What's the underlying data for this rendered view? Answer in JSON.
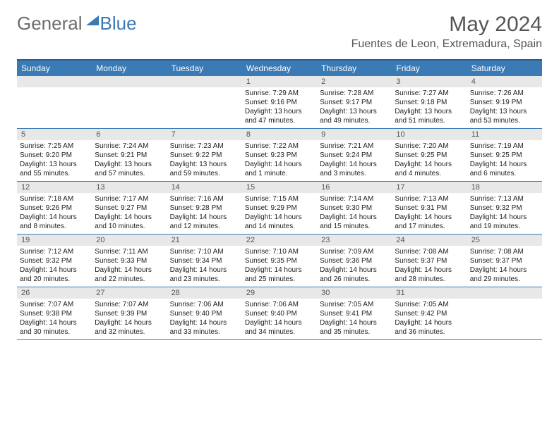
{
  "logo": {
    "part1": "General",
    "part2": "Blue"
  },
  "title": "May 2024",
  "location": "Fuentes de Leon, Extremadura, Spain",
  "colors": {
    "header_bg": "#3a7ab5",
    "header_text": "#ffffff",
    "daynum_bg": "#e8e8e8",
    "text": "#222222",
    "border": "#3a7ab5"
  },
  "dayHeaders": [
    "Sunday",
    "Monday",
    "Tuesday",
    "Wednesday",
    "Thursday",
    "Friday",
    "Saturday"
  ],
  "weeks": [
    [
      null,
      null,
      null,
      {
        "n": "1",
        "sr": "7:29 AM",
        "ss": "9:16 PM",
        "dl": "13 hours and 47 minutes."
      },
      {
        "n": "2",
        "sr": "7:28 AM",
        "ss": "9:17 PM",
        "dl": "13 hours and 49 minutes."
      },
      {
        "n": "3",
        "sr": "7:27 AM",
        "ss": "9:18 PM",
        "dl": "13 hours and 51 minutes."
      },
      {
        "n": "4",
        "sr": "7:26 AM",
        "ss": "9:19 PM",
        "dl": "13 hours and 53 minutes."
      }
    ],
    [
      {
        "n": "5",
        "sr": "7:25 AM",
        "ss": "9:20 PM",
        "dl": "13 hours and 55 minutes."
      },
      {
        "n": "6",
        "sr": "7:24 AM",
        "ss": "9:21 PM",
        "dl": "13 hours and 57 minutes."
      },
      {
        "n": "7",
        "sr": "7:23 AM",
        "ss": "9:22 PM",
        "dl": "13 hours and 59 minutes."
      },
      {
        "n": "8",
        "sr": "7:22 AM",
        "ss": "9:23 PM",
        "dl": "14 hours and 1 minute."
      },
      {
        "n": "9",
        "sr": "7:21 AM",
        "ss": "9:24 PM",
        "dl": "14 hours and 3 minutes."
      },
      {
        "n": "10",
        "sr": "7:20 AM",
        "ss": "9:25 PM",
        "dl": "14 hours and 4 minutes."
      },
      {
        "n": "11",
        "sr": "7:19 AM",
        "ss": "9:25 PM",
        "dl": "14 hours and 6 minutes."
      }
    ],
    [
      {
        "n": "12",
        "sr": "7:18 AM",
        "ss": "9:26 PM",
        "dl": "14 hours and 8 minutes."
      },
      {
        "n": "13",
        "sr": "7:17 AM",
        "ss": "9:27 PM",
        "dl": "14 hours and 10 minutes."
      },
      {
        "n": "14",
        "sr": "7:16 AM",
        "ss": "9:28 PM",
        "dl": "14 hours and 12 minutes."
      },
      {
        "n": "15",
        "sr": "7:15 AM",
        "ss": "9:29 PM",
        "dl": "14 hours and 14 minutes."
      },
      {
        "n": "16",
        "sr": "7:14 AM",
        "ss": "9:30 PM",
        "dl": "14 hours and 15 minutes."
      },
      {
        "n": "17",
        "sr": "7:13 AM",
        "ss": "9:31 PM",
        "dl": "14 hours and 17 minutes."
      },
      {
        "n": "18",
        "sr": "7:13 AM",
        "ss": "9:32 PM",
        "dl": "14 hours and 19 minutes."
      }
    ],
    [
      {
        "n": "19",
        "sr": "7:12 AM",
        "ss": "9:32 PM",
        "dl": "14 hours and 20 minutes."
      },
      {
        "n": "20",
        "sr": "7:11 AM",
        "ss": "9:33 PM",
        "dl": "14 hours and 22 minutes."
      },
      {
        "n": "21",
        "sr": "7:10 AM",
        "ss": "9:34 PM",
        "dl": "14 hours and 23 minutes."
      },
      {
        "n": "22",
        "sr": "7:10 AM",
        "ss": "9:35 PM",
        "dl": "14 hours and 25 minutes."
      },
      {
        "n": "23",
        "sr": "7:09 AM",
        "ss": "9:36 PM",
        "dl": "14 hours and 26 minutes."
      },
      {
        "n": "24",
        "sr": "7:08 AM",
        "ss": "9:37 PM",
        "dl": "14 hours and 28 minutes."
      },
      {
        "n": "25",
        "sr": "7:08 AM",
        "ss": "9:37 PM",
        "dl": "14 hours and 29 minutes."
      }
    ],
    [
      {
        "n": "26",
        "sr": "7:07 AM",
        "ss": "9:38 PM",
        "dl": "14 hours and 30 minutes."
      },
      {
        "n": "27",
        "sr": "7:07 AM",
        "ss": "9:39 PM",
        "dl": "14 hours and 32 minutes."
      },
      {
        "n": "28",
        "sr": "7:06 AM",
        "ss": "9:40 PM",
        "dl": "14 hours and 33 minutes."
      },
      {
        "n": "29",
        "sr": "7:06 AM",
        "ss": "9:40 PM",
        "dl": "14 hours and 34 minutes."
      },
      {
        "n": "30",
        "sr": "7:05 AM",
        "ss": "9:41 PM",
        "dl": "14 hours and 35 minutes."
      },
      {
        "n": "31",
        "sr": "7:05 AM",
        "ss": "9:42 PM",
        "dl": "14 hours and 36 minutes."
      },
      null
    ]
  ],
  "labels": {
    "sunrise": "Sunrise:",
    "sunset": "Sunset:",
    "daylight": "Daylight:"
  }
}
